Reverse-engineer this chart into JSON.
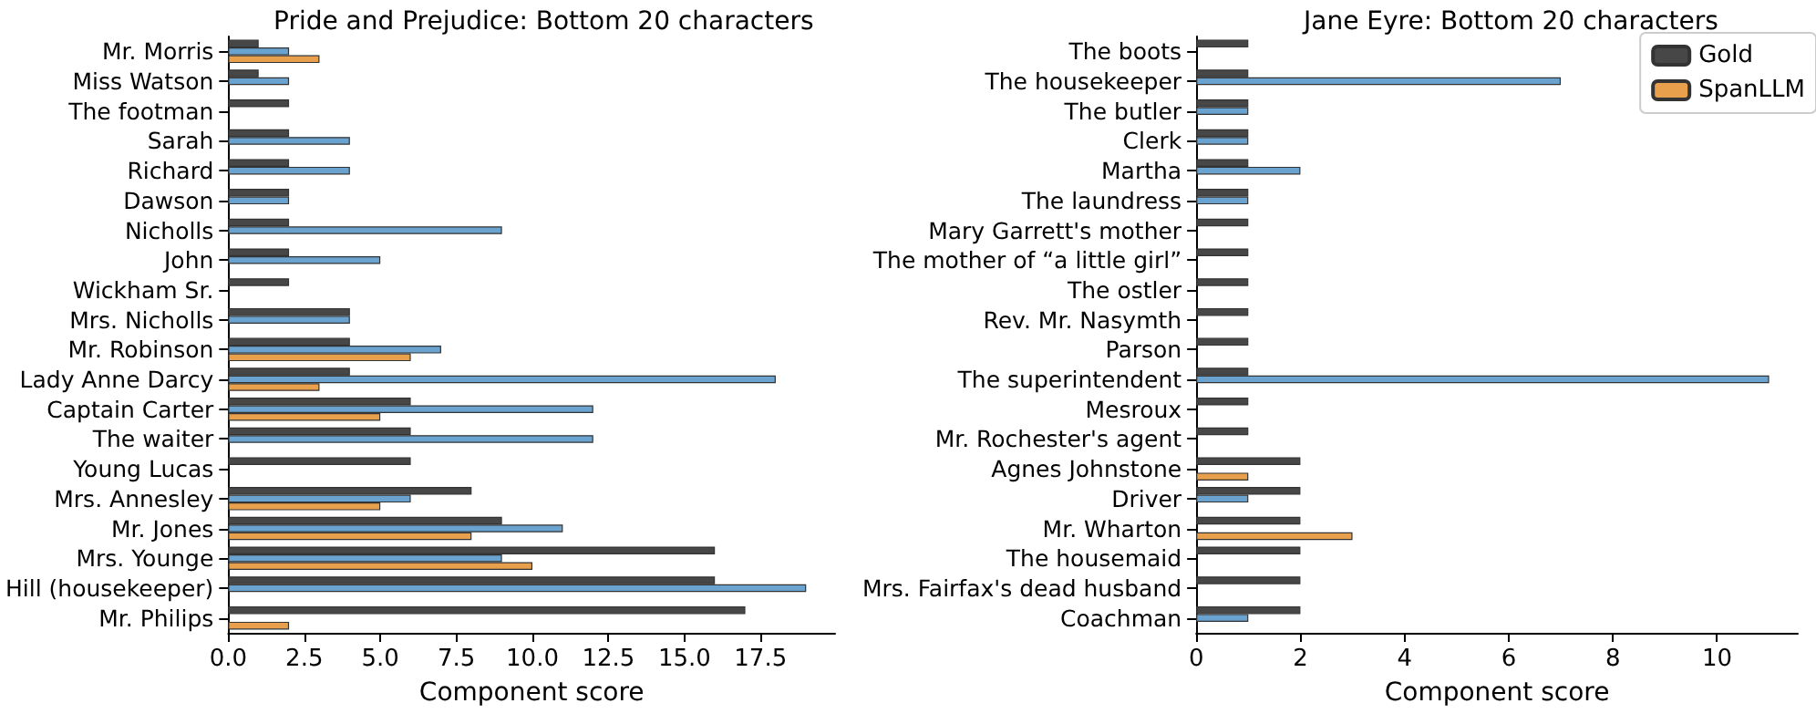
{
  "chart_data": [
    {
      "type": "bar",
      "orientation": "horizontal",
      "title": "Pride and Prejudice: Bottom 20 characters",
      "xlabel": "Component score",
      "categories": [
        "Mr. Morris",
        "Miss Watson",
        "The footman",
        "Sarah",
        "Richard",
        "Dawson",
        "Nicholls",
        "John",
        "Wickham Sr.",
        "Mrs. Nicholls",
        "Mr. Robinson",
        "Lady Anne Darcy",
        "Captain Carter",
        "The waiter",
        "Young Lucas",
        "Mrs. Annesley",
        "Mr. Jones",
        "Mrs. Younge",
        "Hill (housekeeper)",
        "Mr. Philips"
      ],
      "series": [
        {
          "color": "#474747",
          "values": [
            1,
            1,
            2,
            2,
            2,
            2,
            2,
            2,
            2,
            4,
            4,
            4,
            6,
            6,
            6,
            8,
            9,
            16,
            16,
            17
          ]
        },
        {
          "color": "#6aa3cf",
          "values": [
            2,
            2,
            null,
            4,
            4,
            2,
            9,
            5,
            null,
            4,
            7,
            18,
            12,
            12,
            null,
            6,
            11,
            9,
            19,
            null
          ]
        },
        {
          "color": "#e8a04c",
          "values": [
            3,
            null,
            null,
            null,
            null,
            null,
            null,
            null,
            null,
            null,
            6,
            3,
            5,
            null,
            null,
            5,
            8,
            10,
            null,
            2
          ]
        }
      ],
      "xlim": [
        0,
        19.95
      ],
      "xticks": [
        {
          "value": 0,
          "label": "0.0"
        },
        {
          "value": 2.5,
          "label": "2.5"
        },
        {
          "value": 5,
          "label": "5.0"
        },
        {
          "value": 7.5,
          "label": "7.5"
        },
        {
          "value": 10,
          "label": "10.0"
        },
        {
          "value": 12.5,
          "label": "12.5"
        },
        {
          "value": 15,
          "label": "15.0"
        },
        {
          "value": 17.5,
          "label": "17.5"
        }
      ],
      "legend": false,
      "grid": false
    },
    {
      "type": "bar",
      "orientation": "horizontal",
      "title": "Jane Eyre: Bottom 20 characters",
      "xlabel": "Component score",
      "categories": [
        "The boots",
        "The housekeeper",
        "The butler",
        "Clerk",
        "Martha",
        "The laundress",
        "Mary Garrett's mother",
        "The mother of “a little girl”",
        "The ostler",
        "Rev. Mr. Nasymth",
        "Parson",
        "The superintendent",
        "Mesroux",
        "Mr. Rochester's agent",
        "Agnes Johnstone",
        "Driver",
        "Mr. Wharton",
        "The housemaid",
        "Mrs. Fairfax's dead husband",
        "Coachman"
      ],
      "series": [
        {
          "name": "Gold",
          "color": "#474747",
          "values": [
            1,
            1,
            1,
            1,
            1,
            1,
            1,
            1,
            1,
            1,
            1,
            1,
            1,
            1,
            2,
            2,
            2,
            2,
            2,
            2
          ]
        },
        {
          "color": "#6aa3cf",
          "values": [
            null,
            7,
            1,
            1,
            2,
            1,
            null,
            null,
            null,
            null,
            null,
            11,
            null,
            null,
            null,
            1,
            null,
            null,
            null,
            1
          ]
        },
        {
          "name": "SpanLLM",
          "color": "#e8a04c",
          "values": [
            null,
            null,
            null,
            null,
            null,
            null,
            null,
            null,
            null,
            null,
            null,
            null,
            null,
            null,
            1,
            null,
            3,
            null,
            null,
            null
          ]
        }
      ],
      "xlim": [
        0,
        11.55
      ],
      "xticks": [
        0,
        2,
        4,
        6,
        8,
        10
      ],
      "legend": "top right",
      "grid": false
    }
  ]
}
